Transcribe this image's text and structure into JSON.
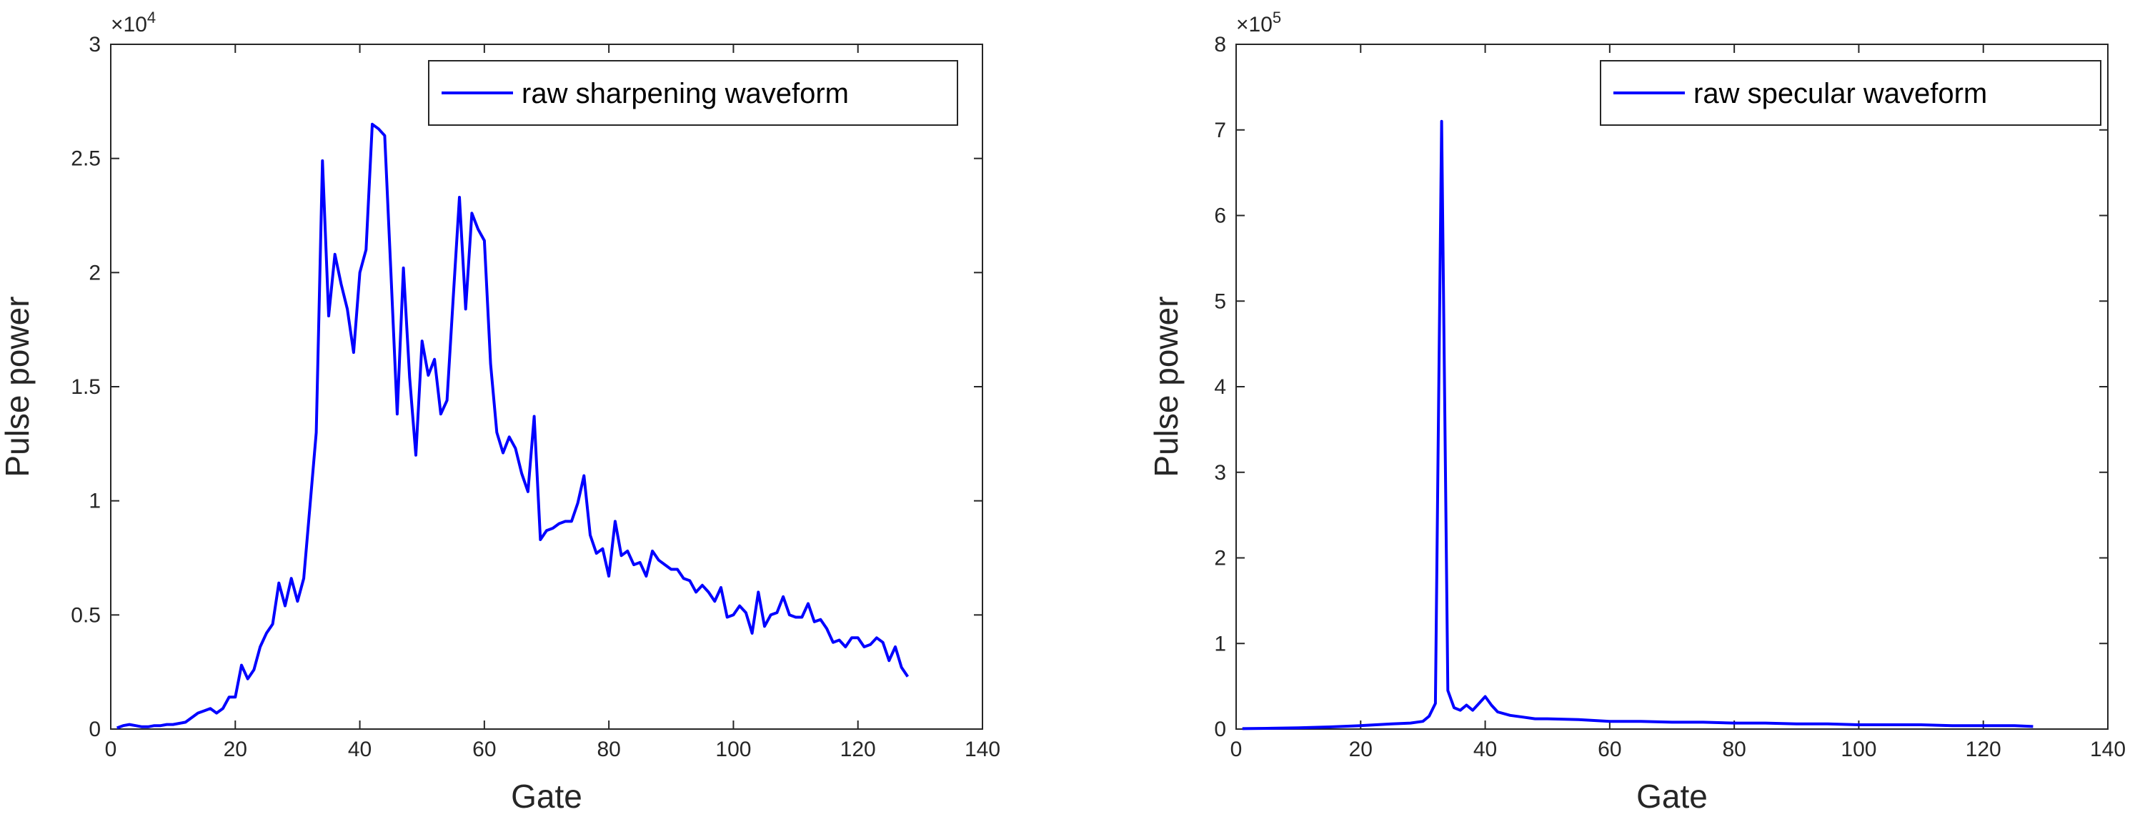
{
  "chart_data": [
    {
      "type": "line",
      "xlabel": "Gate",
      "ylabel": "Pulse power",
      "xlim": [
        0,
        140
      ],
      "ylim": [
        0,
        30000
      ],
      "xticks": [
        0,
        20,
        40,
        60,
        80,
        100,
        120,
        140
      ],
      "xtick_labels": [
        "0",
        "20",
        "40",
        "60",
        "80",
        "100",
        "120",
        "140"
      ],
      "yticks": [
        0,
        5000,
        10000,
        15000,
        20000,
        25000,
        30000
      ],
      "ytick_labels": [
        "0",
        "0.5",
        "1",
        "1.5",
        "2",
        "2.5",
        "3"
      ],
      "y_exponent_base": "×10",
      "y_exponent_power": "4",
      "grid": false,
      "legend_position": "top-right",
      "series": [
        {
          "name": "raw sharpening waveform",
          "color": "#0000ff",
          "x": [
            1,
            2,
            3,
            4,
            5,
            6,
            7,
            8,
            9,
            10,
            11,
            12,
            13,
            14,
            15,
            16,
            17,
            18,
            19,
            20,
            21,
            22,
            23,
            24,
            25,
            26,
            27,
            28,
            29,
            30,
            31,
            32,
            33,
            34,
            35,
            36,
            37,
            38,
            39,
            40,
            41,
            42,
            43,
            44,
            45,
            46,
            47,
            48,
            49,
            50,
            51,
            52,
            53,
            54,
            55,
            56,
            57,
            58,
            59,
            60,
            61,
            62,
            63,
            64,
            65,
            66,
            67,
            68,
            69,
            70,
            71,
            72,
            73,
            74,
            75,
            76,
            77,
            78,
            79,
            80,
            81,
            82,
            83,
            84,
            85,
            86,
            87,
            88,
            89,
            90,
            91,
            92,
            93,
            94,
            95,
            96,
            97,
            98,
            99,
            100,
            101,
            102,
            103,
            104,
            105,
            106,
            107,
            108,
            109,
            110,
            111,
            112,
            113,
            114,
            115,
            116,
            117,
            118,
            119,
            120,
            121,
            122,
            123,
            124,
            125,
            126,
            127,
            128
          ],
          "values": [
            50,
            150,
            200,
            150,
            100,
            100,
            150,
            150,
            200,
            200,
            250,
            300,
            500,
            700,
            800,
            900,
            700,
            900,
            1400,
            1400,
            2800,
            2200,
            2600,
            3600,
            4200,
            4600,
            6400,
            5400,
            6600,
            5600,
            6600,
            9800,
            13000,
            24900,
            18100,
            20800,
            19500,
            18400,
            16500,
            20000,
            21000,
            26500,
            26300,
            26000,
            20000,
            13800,
            20200,
            15400,
            12000,
            17000,
            15500,
            16200,
            13800,
            14400,
            18900,
            23300,
            18400,
            22600,
            21900,
            21400,
            16000,
            13000,
            12100,
            12800,
            12300,
            11200,
            10400,
            13700,
            8300,
            8700,
            8800,
            9000,
            9100,
            9100,
            9900,
            11100,
            8500,
            7700,
            7900,
            6700,
            9100,
            7600,
            7800,
            7200,
            7300,
            6700,
            7800,
            7400,
            7200,
            7000,
            7000,
            6600,
            6500,
            6000,
            6300,
            6000,
            5600,
            6200,
            4900,
            5000,
            5400,
            5100,
            4200,
            6000,
            4500,
            5000,
            5100,
            5800,
            5000,
            4900,
            4900,
            5500,
            4700,
            4800,
            4400,
            3800,
            3900,
            3600,
            4000,
            4000,
            3600,
            3700,
            4000,
            3800,
            3000,
            3600,
            2700,
            2300
          ]
        }
      ]
    },
    {
      "type": "line",
      "xlabel": "Gate",
      "ylabel": "Pulse power",
      "xlim": [
        0,
        140
      ],
      "ylim": [
        0,
        800000
      ],
      "xticks": [
        0,
        20,
        40,
        60,
        80,
        100,
        120,
        140
      ],
      "xtick_labels": [
        "0",
        "20",
        "40",
        "60",
        "80",
        "100",
        "120",
        "140"
      ],
      "yticks": [
        0,
        100000,
        200000,
        300000,
        400000,
        500000,
        600000,
        700000,
        800000
      ],
      "ytick_labels": [
        "0",
        "1",
        "2",
        "3",
        "4",
        "5",
        "6",
        "7",
        "8"
      ],
      "y_exponent_base": "×10",
      "y_exponent_power": "5",
      "grid": false,
      "legend_position": "top-right",
      "series": [
        {
          "name": "raw specular waveform",
          "color": "#0000ff",
          "x": [
            1,
            5,
            10,
            15,
            20,
            25,
            28,
            30,
            31,
            32,
            33,
            34,
            35,
            36,
            37,
            38,
            39,
            40,
            41,
            42,
            44,
            46,
            48,
            50,
            55,
            60,
            65,
            70,
            75,
            80,
            85,
            90,
            95,
            100,
            105,
            110,
            115,
            120,
            125,
            128
          ],
          "values": [
            500,
            800,
            1500,
            2500,
            4000,
            6000,
            7000,
            9000,
            15000,
            30000,
            710000,
            45000,
            25000,
            22000,
            28000,
            22000,
            30000,
            38000,
            28000,
            20000,
            16000,
            14000,
            12000,
            12000,
            11000,
            9000,
            9000,
            8000,
            8000,
            7000,
            7000,
            6000,
            6000,
            5000,
            5000,
            5000,
            4000,
            4000,
            4000,
            3000
          ]
        }
      ]
    }
  ]
}
